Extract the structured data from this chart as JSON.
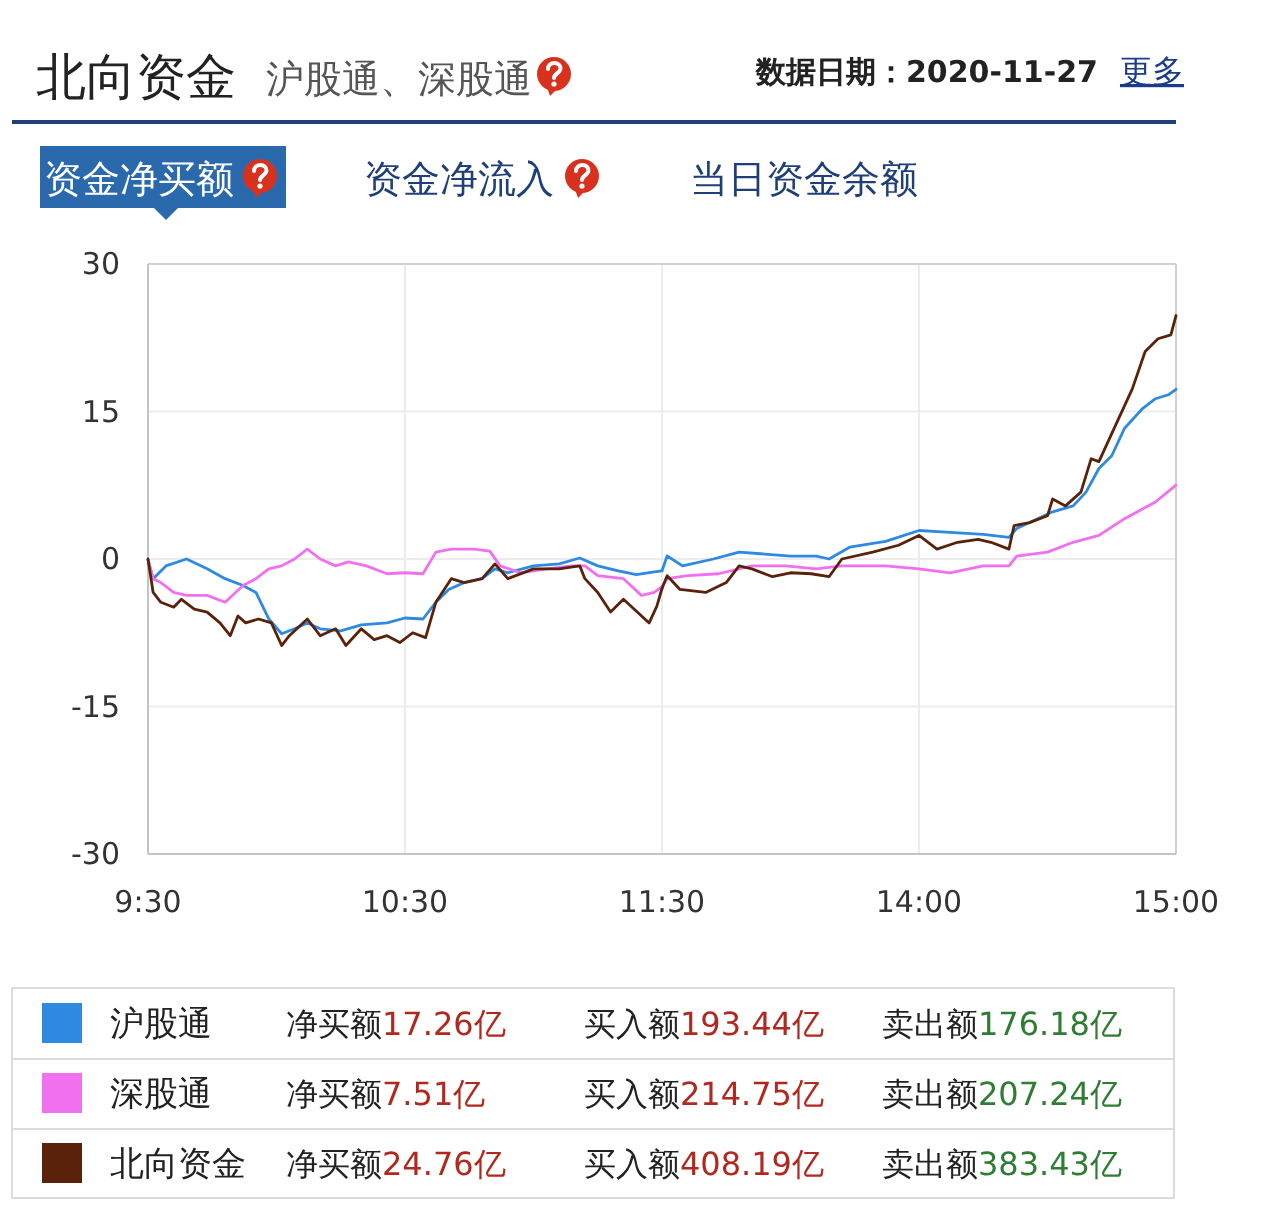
{
  "chart_data": [
    {
      "type": "line",
      "title": "北向资金",
      "subtitle": "沪股通、深股通",
      "annotations": [
        "数据日期：2020-11-27",
        "更多",
        "资金净买额",
        "资金净流入",
        "当日资金余额",
        "净买额17.26亿",
        "买入额193.44亿",
        "卖出额176.18亿",
        "净买额7.51亿",
        "买入额214.75亿",
        "卖出额207.24亿",
        "净买额24.76亿",
        "买入额408.19亿",
        "卖出额383.43亿"
      ],
      "xlim": [
        9.5,
        11.5
      ],
      "xticks": [
        {
          "value": 9.5,
          "label": "9:30"
        },
        {
          "value": 10.5,
          "label": "10:30"
        },
        {
          "value": 11.5,
          "label": "11:30"
        }
      ],
      "ylim": [
        -30,
        30
      ],
      "yticks": [
        -30,
        -15,
        0,
        15,
        30
      ],
      "grid": true,
      "legend": "bottom",
      "line_style": "solid",
      "series": [
        {
          "name": "沪股通",
          "color": "#2e8ae0",
          "x": [
            9.5,
            9.52,
            9.57,
            9.65,
            9.73,
            9.8,
            9.87,
            9.92,
            9.97,
            10.02,
            10.07,
            10.12,
            10.17,
            10.25,
            10.33,
            10.43,
            10.5,
            10.57,
            10.62,
            10.67,
            10.73,
            10.8,
            10.85,
            10.9,
            11.0,
            11.1,
            11.18,
            11.25,
            11.33,
            11.4,
            11.47,
            11.5
          ],
          "values": [
            -0.1,
            -2.0,
            -0.7,
            0.0,
            -1.0,
            -2.0,
            -2.7,
            -3.4,
            -6.1,
            -7.6,
            -7.1,
            -6.5,
            -7.1,
            -7.3,
            -6.7,
            -6.5,
            -6.0,
            -6.1,
            -4.4,
            -3.1,
            -2.4,
            -2.0,
            -1.0,
            -1.4,
            -0.7,
            -0.5,
            0.1,
            -0.7,
            -1.2,
            -1.6,
            -1.3,
            -1.2
          ]
        },
        {
          "name": "深股通",
          "color": "#f070f0",
          "x": [
            9.5,
            9.52,
            9.55,
            9.6,
            9.65,
            9.73,
            9.8,
            9.87,
            9.92,
            9.97,
            10.02,
            10.07,
            10.12,
            10.17,
            10.23,
            10.28,
            10.35,
            10.43,
            10.5,
            10.57,
            10.62,
            10.68,
            10.77,
            10.83,
            10.87,
            10.95,
            11.05,
            11.15,
            11.2,
            11.25,
            11.35,
            11.42,
            11.47,
            11.5
          ],
          "values": [
            -0.1,
            -2.0,
            -2.4,
            -3.4,
            -3.7,
            -3.7,
            -4.4,
            -2.7,
            -2.0,
            -1.0,
            -0.7,
            0.0,
            1.0,
            0.0,
            -0.7,
            -0.3,
            -0.7,
            -1.5,
            -1.4,
            -1.5,
            0.7,
            1.0,
            1.0,
            0.8,
            -0.7,
            -1.4,
            -1.0,
            -0.7,
            -0.7,
            -1.7,
            -2.0,
            -3.7,
            -3.4,
            -2.8
          ]
        },
        {
          "name": "北向资金",
          "color": "#5a220a",
          "x": [
            9.5,
            9.52,
            9.55,
            9.6,
            9.63,
            9.68,
            9.73,
            9.78,
            9.82,
            9.85,
            9.88,
            9.93,
            9.98,
            10.02,
            10.05,
            10.12,
            10.17,
            10.23,
            10.27,
            10.33,
            10.38,
            10.43,
            10.48,
            10.53,
            10.58,
            10.62,
            10.68,
            10.73,
            10.8,
            10.85,
            10.9,
            11.0,
            11.1,
            11.18,
            11.2,
            11.25,
            11.3,
            11.35,
            11.45,
            11.48,
            11.5
          ],
          "values": [
            0.0,
            -3.4,
            -4.4,
            -4.9,
            -4.1,
            -5.1,
            -5.4,
            -6.5,
            -7.8,
            -5.8,
            -6.5,
            -6.1,
            -6.5,
            -8.8,
            -7.8,
            -6.1,
            -7.8,
            -7.1,
            -8.8,
            -7.1,
            -8.2,
            -7.8,
            -8.5,
            -7.5,
            -8.0,
            -4.4,
            -2.0,
            -2.4,
            -2.0,
            -0.5,
            -2.0,
            -1.0,
            -1.0,
            -0.7,
            -2.0,
            -3.4,
            -5.4,
            -4.1,
            -6.5,
            -4.8,
            -3.0
          ]
        }
      ]
    },
    {
      "type": "line",
      "xlim": [
        13,
        15
      ],
      "xticks": [
        {
          "value": 14,
          "label": "14:00"
        },
        {
          "value": 15,
          "label": "15:00"
        }
      ],
      "ylim": [
        -30,
        30
      ],
      "yticks": [
        -30,
        -15,
        0,
        15,
        30
      ],
      "tick_labels": "x",
      "grid": true,
      "line_style": "solid",
      "series": [
        {
          "color": "#2e8ae0",
          "x": [
            13.0,
            13.02,
            13.08,
            13.2,
            13.3,
            13.4,
            13.5,
            13.6,
            13.65,
            13.73,
            13.87,
            14.0,
            14.12,
            14.25,
            14.35,
            14.38,
            14.52,
            14.6,
            14.65,
            14.7,
            14.75,
            14.8,
            14.87,
            14.92,
            14.97,
            15.0
          ],
          "values": [
            -1.2,
            0.3,
            -0.7,
            0.0,
            0.7,
            0.5,
            0.3,
            0.3,
            0.0,
            1.2,
            1.8,
            2.9,
            2.7,
            2.5,
            2.2,
            3.1,
            4.8,
            5.4,
            6.8,
            9.2,
            10.5,
            13.3,
            15.3,
            16.3,
            16.7,
            17.26
          ]
        },
        {
          "color": "#f070f0",
          "x": [
            13.0,
            13.02,
            13.1,
            13.22,
            13.35,
            13.48,
            13.6,
            13.7,
            13.87,
            14.0,
            14.12,
            14.25,
            14.35,
            14.38,
            14.5,
            14.6,
            14.7,
            14.8,
            14.92,
            15.0
          ],
          "values": [
            -2.8,
            -2.0,
            -1.7,
            -1.5,
            -0.7,
            -0.7,
            -1.0,
            -0.7,
            -0.7,
            -1.0,
            -1.4,
            -0.7,
            -0.7,
            0.3,
            0.7,
            1.7,
            2.4,
            4.1,
            5.8,
            7.51
          ]
        },
        {
          "color": "#5a220a",
          "x": [
            13.0,
            13.02,
            13.07,
            13.17,
            13.25,
            13.3,
            13.35,
            13.43,
            13.5,
            13.58,
            13.65,
            13.7,
            13.82,
            13.92,
            14.0,
            14.07,
            14.15,
            14.23,
            14.28,
            14.35,
            14.37,
            14.43,
            14.5,
            14.52,
            14.57,
            14.63,
            14.67,
            14.7,
            14.77,
            14.83,
            14.88,
            14.93,
            14.98,
            15.0
          ],
          "values": [
            -3.0,
            -1.7,
            -3.1,
            -3.4,
            -2.4,
            -0.7,
            -1.0,
            -1.8,
            -1.4,
            -1.5,
            -1.8,
            0.0,
            0.7,
            1.4,
            2.4,
            1.0,
            1.7,
            2.0,
            1.7,
            1.0,
            3.4,
            3.7,
            4.4,
            6.1,
            5.4,
            6.8,
            10.2,
            9.9,
            13.9,
            17.3,
            21.1,
            22.4,
            22.8,
            24.76
          ]
        }
      ]
    }
  ]
}
